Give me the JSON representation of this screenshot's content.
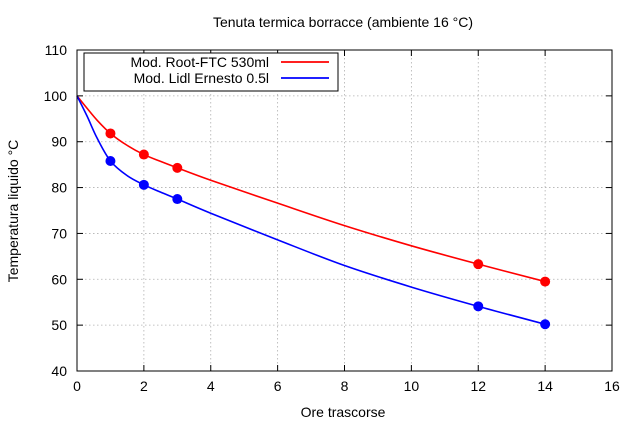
{
  "chart_data": {
    "type": "line",
    "title": "Tenuta termica borracce (ambiente 16 °C)",
    "xlabel": "Ore trascorse",
    "ylabel": "Temperatura liquido °C",
    "xlim": [
      0,
      16
    ],
    "ylim": [
      40,
      110
    ],
    "xticks": [
      0,
      2,
      4,
      6,
      8,
      10,
      12,
      14,
      16
    ],
    "yticks": [
      40,
      50,
      60,
      70,
      80,
      90,
      100,
      110
    ],
    "grid": true,
    "legend_position": "top-left",
    "series": [
      {
        "name": "Mod. Root-FTC 530ml",
        "color": "#ff0000",
        "points": [
          {
            "x": 1,
            "y": 91.8
          },
          {
            "x": 2,
            "y": 87.2
          },
          {
            "x": 3,
            "y": 84.3
          },
          {
            "x": 12,
            "y": 63.3
          },
          {
            "x": 14,
            "y": 59.5
          }
        ],
        "curve": [
          {
            "x": 0,
            "y": 100
          },
          {
            "x": 0.3,
            "y": 97.3
          },
          {
            "x": 0.6,
            "y": 94.7
          },
          {
            "x": 1,
            "y": 91.8
          },
          {
            "x": 1.5,
            "y": 89.2
          },
          {
            "x": 2,
            "y": 87.2
          },
          {
            "x": 2.5,
            "y": 85.7
          },
          {
            "x": 3,
            "y": 84.3
          },
          {
            "x": 4,
            "y": 81.6
          },
          {
            "x": 6,
            "y": 76.6
          },
          {
            "x": 8,
            "y": 71.7
          },
          {
            "x": 10,
            "y": 67.3
          },
          {
            "x": 12,
            "y": 63.3
          },
          {
            "x": 14,
            "y": 59.5
          }
        ]
      },
      {
        "name": "Mod. Lidl Ernesto 0.5l",
        "color": "#0000ff",
        "points": [
          {
            "x": 1,
            "y": 85.8
          },
          {
            "x": 2,
            "y": 80.6
          },
          {
            "x": 3,
            "y": 77.5
          },
          {
            "x": 12,
            "y": 54.1
          },
          {
            "x": 14,
            "y": 50.2
          }
        ],
        "curve": [
          {
            "x": 0,
            "y": 100
          },
          {
            "x": 0.3,
            "y": 95.6
          },
          {
            "x": 0.6,
            "y": 90.8
          },
          {
            "x": 1,
            "y": 85.8
          },
          {
            "x": 1.5,
            "y": 82.6
          },
          {
            "x": 2,
            "y": 80.6
          },
          {
            "x": 2.5,
            "y": 79.0
          },
          {
            "x": 3,
            "y": 77.5
          },
          {
            "x": 4,
            "y": 74.4
          },
          {
            "x": 6,
            "y": 68.6
          },
          {
            "x": 8,
            "y": 63.0
          },
          {
            "x": 10,
            "y": 58.3
          },
          {
            "x": 12,
            "y": 54.1
          },
          {
            "x": 14,
            "y": 50.2
          }
        ]
      }
    ]
  }
}
